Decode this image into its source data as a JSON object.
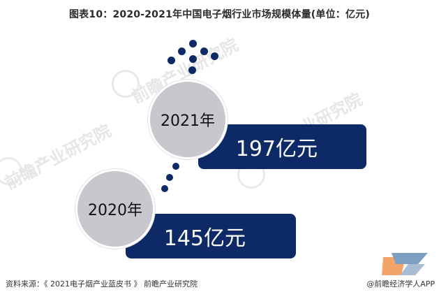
{
  "title": "图表10：2020-2021年中国电子烟行业市场规模体量(单位：亿元)",
  "source": "资料来源：《 2021电子烟产业蓝皮书 》 前瞻产业研究院",
  "brand": "@前瞻经济学人APP",
  "watermarks": [
    "前瞻产业研究院",
    "前瞻产业研究院",
    "前瞻产业研究院"
  ],
  "colors": {
    "bar": "#0d2a66",
    "circle": "#c9c7ce",
    "dot": "#0d2a66"
  },
  "chart_data": {
    "type": "bar",
    "title": "图表10：2020-2021年中国电子烟行业市场规模体量(单位：亿元)",
    "categories": [
      "2020年",
      "2021年"
    ],
    "values": [
      145,
      197
    ],
    "value_labels": [
      "145亿元",
      "197亿元"
    ],
    "unit": "亿元"
  }
}
